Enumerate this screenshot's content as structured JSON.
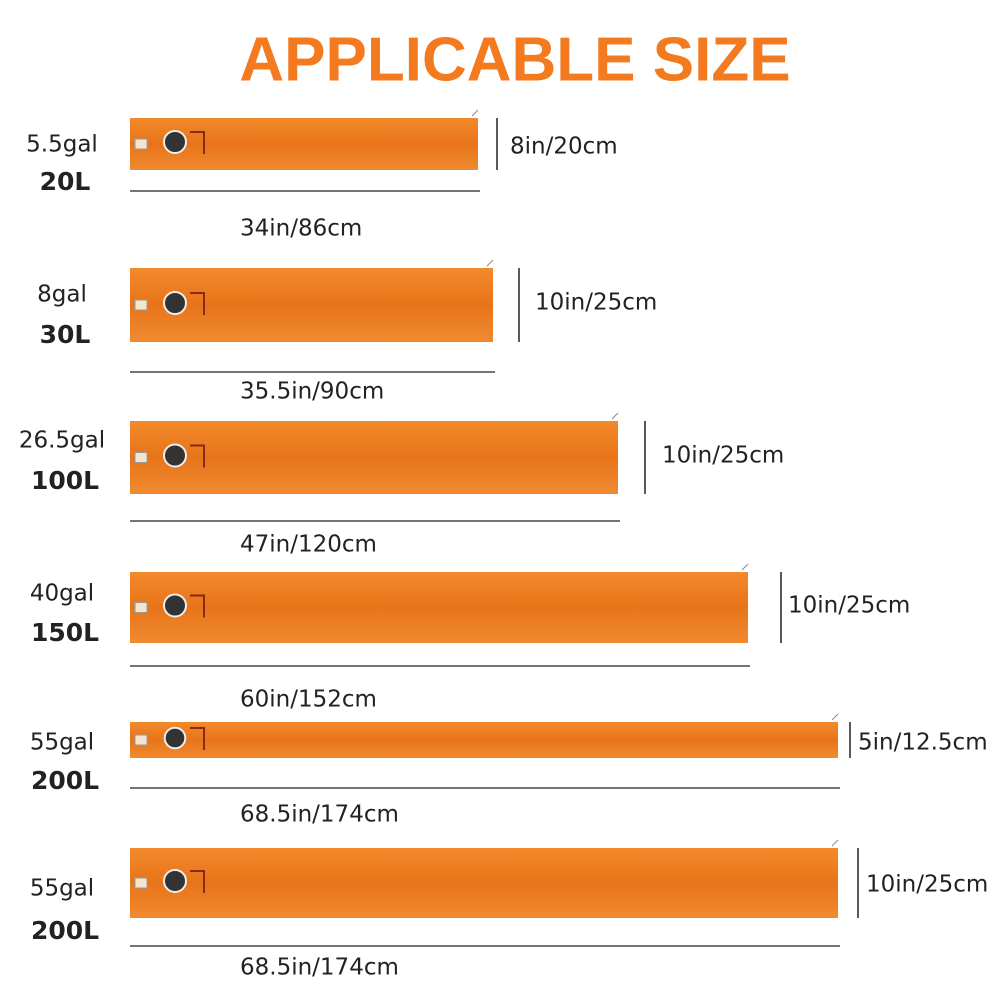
{
  "header": {
    "title": "APPLICABLE SIZE"
  },
  "items": [
    {
      "gallons": "5.5gal",
      "liters": "20L",
      "height": "8in/20cm",
      "width": "34in/86cm"
    },
    {
      "gallons": "8gal",
      "liters": "30L",
      "height": "10in/25cm",
      "width": "35.5in/90cm"
    },
    {
      "gallons": "26.5gal",
      "liters": "100L",
      "height": "10in/25cm",
      "width": "47in/120cm"
    },
    {
      "gallons": "40gal",
      "liters": "150L",
      "height": "10in/25cm",
      "width": "60in/152cm"
    },
    {
      "gallons": "55gal",
      "liters": "200L",
      "height": "5in/12.5cm",
      "width": "68.5in/174cm"
    },
    {
      "gallons": "55gal",
      "liters": "200L",
      "height": "10in/25cm",
      "width": "68.5in/174cm"
    }
  ]
}
